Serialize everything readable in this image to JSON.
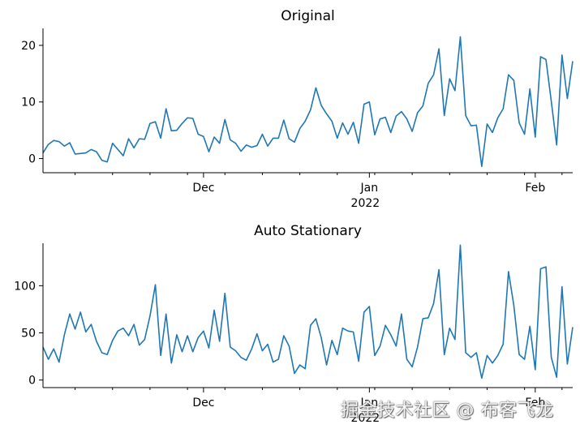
{
  "chart_data": [
    {
      "type": "line",
      "title": "Original",
      "xlabel": "",
      "ylabel": "",
      "ylim": [
        -2.5,
        23
      ],
      "yticks": [
        0,
        10,
        20
      ],
      "x_start": "2021-11-01",
      "x_end": "2022-02-08",
      "x_ticks": [
        {
          "date": "2021-12-01",
          "label": "Dec",
          "sublabel": ""
        },
        {
          "date": "2022-01-01",
          "label": "Jan",
          "sublabel": "2022"
        },
        {
          "date": "2022-02-01",
          "label": "Feb",
          "sublabel": ""
        }
      ],
      "color": "#1f77b4",
      "values": [
        1.0,
        2.5,
        3.2,
        3.0,
        2.2,
        2.8,
        0.8,
        0.9,
        1.0,
        1.6,
        1.2,
        -0.3,
        -0.6,
        2.7,
        1.6,
        0.5,
        3.5,
        1.9,
        3.5,
        3.4,
        6.2,
        6.5,
        3.6,
        8.8,
        4.9,
        5.0,
        6.2,
        7.2,
        7.1,
        4.3,
        3.9,
        1.2,
        3.8,
        2.7,
        6.9,
        3.3,
        2.7,
        1.3,
        2.4,
        2.0,
        2.3,
        4.3,
        2.2,
        3.6,
        3.6,
        6.8,
        3.5,
        2.9,
        5.3,
        6.6,
        8.6,
        12.5,
        9.4,
        7.9,
        6.6,
        3.6,
        6.3,
        4.3,
        6.4,
        2.7,
        9.6,
        10.0,
        4.2,
        7.0,
        7.3,
        4.6,
        7.5,
        8.3,
        7.0,
        4.8,
        8.1,
        9.3,
        13.3,
        14.8,
        19.4,
        7.6,
        14.1,
        12.0,
        21.5,
        7.6,
        5.8,
        5.9,
        -1.4,
        6.1,
        4.6,
        7.2,
        8.8,
        14.8,
        13.8,
        6.3,
        4.3,
        12.3,
        3.8,
        18.0,
        17.5,
        10.1,
        2.4,
        18.3,
        10.6,
        17.2
      ]
    },
    {
      "type": "line",
      "title": "Auto Stationary",
      "xlabel": "",
      "ylabel": "",
      "ylim": [
        -8,
        145
      ],
      "yticks": [
        0,
        50,
        100
      ],
      "x_start": "2021-11-01",
      "x_end": "2022-02-08",
      "x_ticks": [
        {
          "date": "2021-12-01",
          "label": "Dec",
          "sublabel": ""
        },
        {
          "date": "2022-01-01",
          "label": "Jan",
          "sublabel": "2022"
        },
        {
          "date": "2022-02-01",
          "label": "Feb",
          "sublabel": ""
        }
      ],
      "color": "#1f77b4",
      "values": [
        35,
        22,
        33,
        19,
        48,
        70,
        54,
        72,
        51,
        59,
        41,
        29,
        27,
        42,
        52,
        55,
        47,
        59,
        37,
        43,
        68,
        101,
        26,
        70,
        18,
        48,
        30,
        47,
        30,
        45,
        52,
        34,
        74,
        41,
        92,
        35,
        31,
        24,
        21,
        33,
        49,
        31,
        38,
        19,
        22,
        47,
        36,
        7,
        16,
        12,
        58,
        65,
        45,
        16,
        42,
        27,
        55,
        52,
        51,
        20,
        72,
        78,
        26,
        36,
        58,
        48,
        36,
        70,
        22,
        14,
        35,
        65,
        66,
        81,
        117,
        27,
        55,
        43,
        143,
        29,
        24,
        29,
        2,
        26,
        18,
        26,
        38,
        115,
        79,
        27,
        22,
        57,
        11,
        118,
        120,
        24,
        3,
        99,
        17,
        56
      ]
    }
  ],
  "watermark": "掘金技术社区 @ 布客飞龙"
}
